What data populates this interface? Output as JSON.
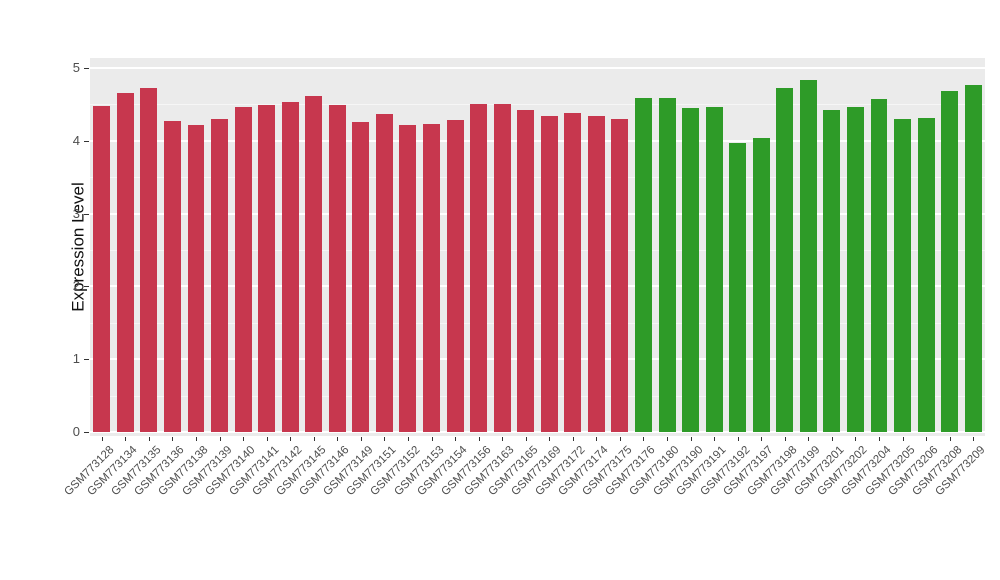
{
  "page": {
    "background": "#ffffff"
  },
  "chart_data": {
    "type": "bar",
    "title": "",
    "xlabel": "",
    "ylabel": "Expression Level",
    "ylim": [
      0,
      5
    ],
    "yticks": [
      "0",
      "1",
      "2",
      "3",
      "4",
      "5"
    ],
    "grid": "on",
    "legend": "none",
    "panel_background": "#EBEBEB",
    "grid_color": "#FFFFFF",
    "categories": [
      "GSM773128",
      "GSM773134",
      "GSM773135",
      "GSM773136",
      "GSM773138",
      "GSM773139",
      "GSM773140",
      "GSM773141",
      "GSM773142",
      "GSM773145",
      "GSM773146",
      "GSM773149",
      "GSM773151",
      "GSM773152",
      "GSM773153",
      "GSM773154",
      "GSM773156",
      "GSM773163",
      "GSM773165",
      "GSM773169",
      "GSM773172",
      "GSM773174",
      "GSM773175",
      "GSM773176",
      "GSM773180",
      "GSM773190",
      "GSM773191",
      "GSM773192",
      "GSM773197",
      "GSM773198",
      "GSM773199",
      "GSM773201",
      "GSM773202",
      "GSM773204",
      "GSM773205",
      "GSM773206",
      "GSM773208",
      "GSM773209"
    ],
    "values": [
      4.48,
      4.65,
      4.73,
      4.27,
      4.22,
      4.3,
      4.46,
      4.49,
      4.54,
      4.61,
      4.49,
      4.26,
      4.37,
      4.22,
      4.23,
      4.28,
      4.51,
      4.51,
      4.43,
      4.34,
      4.38,
      4.34,
      4.3,
      4.59,
      4.59,
      4.45,
      4.47,
      3.97,
      4.04,
      4.72,
      4.84,
      4.42,
      4.47,
      4.58,
      4.3,
      4.31,
      4.69,
      4.76
    ],
    "group_split_index": 23,
    "group_colors": [
      "#C7374E",
      "#2E9B28"
    ]
  }
}
